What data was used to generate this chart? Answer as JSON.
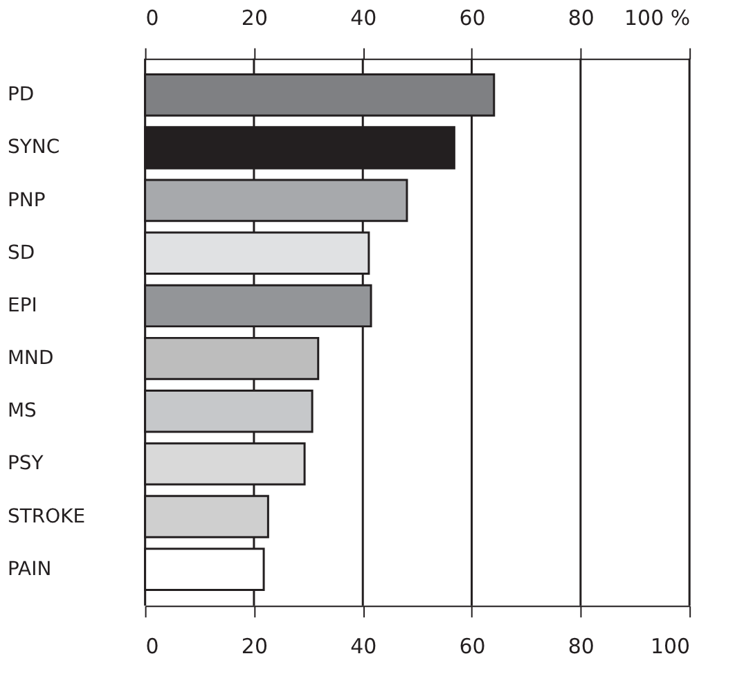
{
  "chart_data": {
    "type": "bar",
    "orientation": "horizontal",
    "categories": [
      "PD",
      "SYNC",
      "PNP",
      "SD",
      "EPI",
      "MND",
      "MS",
      "PSY",
      "STROKE",
      "PAIN"
    ],
    "values": [
      64.1,
      56.8,
      48.1,
      41.1,
      41.5,
      31.8,
      30.7,
      29.3,
      22.6,
      21.8
    ],
    "colors": [
      "#7f8083",
      "#231f20",
      "#a7a9ac",
      "#e0e1e3",
      "#939598",
      "#bdbdbd",
      "#c6c8ca",
      "#d9d9d9",
      "#cfcfcf",
      "#ffffff"
    ],
    "xlim": [
      0,
      100
    ],
    "xticks": [
      0,
      20,
      40,
      60,
      80,
      100
    ],
    "x2lim": [
      0,
      100
    ],
    "x2ticks": [
      0,
      20,
      40,
      60,
      80,
      {
        "value": 100,
        "label": "100 %"
      }
    ],
    "grid": "x"
  }
}
